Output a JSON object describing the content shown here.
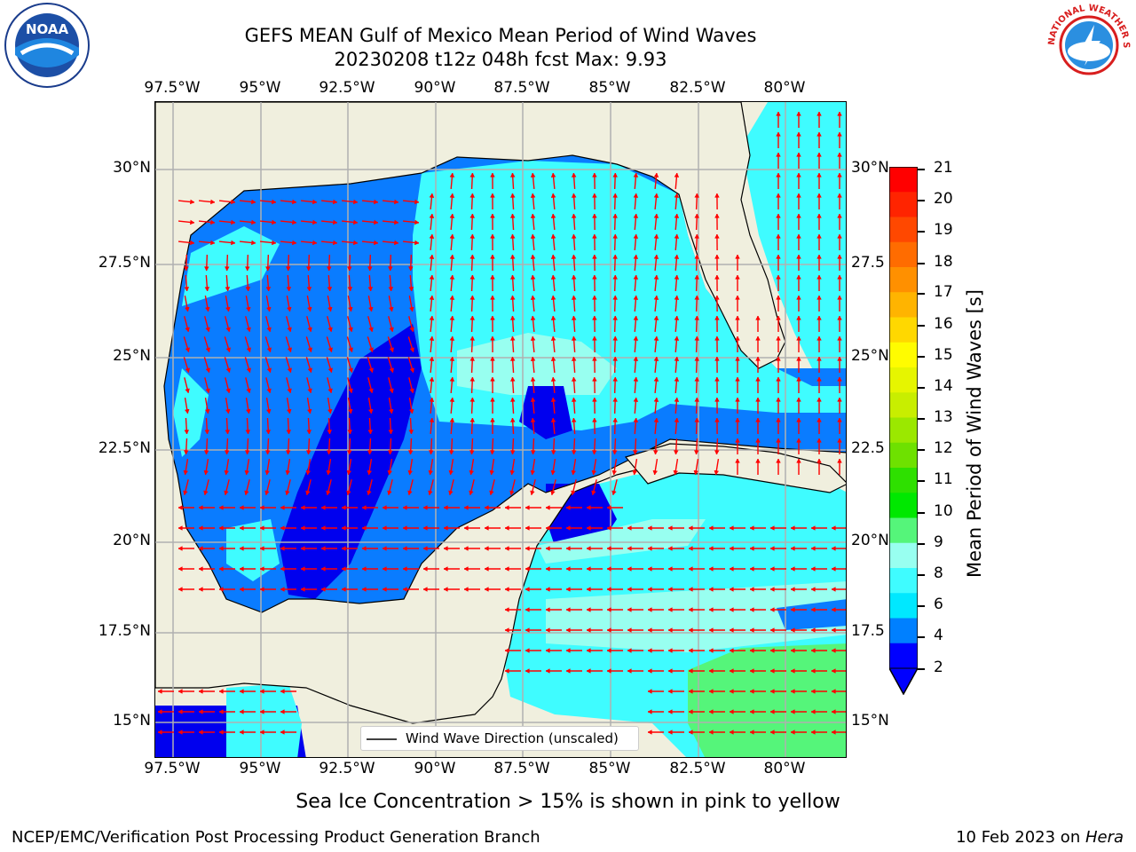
{
  "title": {
    "line1": "GEFS MEAN Gulf of Mexico Mean Period of Wind Waves",
    "line2": "20230208 t12z 048h fcst   Max: 9.93"
  },
  "axes": {
    "lon_labels": [
      "97.5°W",
      "95°W",
      "92.5°W",
      "90°W",
      "87.5°W",
      "85°W",
      "82.5°W",
      "80°W"
    ],
    "lat_labels_left": [
      "30°N",
      "27.5°N",
      "25°N",
      "22.5°N",
      "20°N",
      "17.5°N",
      "15°N"
    ],
    "lat_labels_right": [
      "30°N",
      "27.5",
      "25°N",
      "22.5",
      "20°N",
      "17.5",
      "15°N"
    ]
  },
  "colorbar": {
    "title": "Mean Period of Wind Waves [s]",
    "ticks": [
      "21",
      "20",
      "19",
      "18",
      "17",
      "16",
      "15",
      "14",
      "13",
      "12",
      "11",
      "10",
      "9",
      "8",
      "6",
      "4",
      "2"
    ],
    "colors": [
      "#ff0000",
      "#ff2400",
      "#ff4800",
      "#ff6c00",
      "#ff9000",
      "#ffb400",
      "#ffd800",
      "#fffc00",
      "#e6f500",
      "#c8ee00",
      "#9be800",
      "#6ee100",
      "#2ee000",
      "#00e800",
      "#55f57a",
      "#98fff0",
      "#3ffcff",
      "#00e8ff",
      "#0080ff",
      "#0000ff"
    ]
  },
  "legend": {
    "label": "Wind Wave Direction (unscaled)"
  },
  "note": "Sea Ice Concentration > 15% is shown in pink to yellow",
  "footer": {
    "left": "NCEP/EMC/Verification Post Processing Product Generation Branch",
    "right_date": "10 Feb 2023 on ",
    "right_host": "Hera"
  },
  "logos": {
    "noaa": "NOAA",
    "nws": "NATIONAL WEATHER SERVICE"
  },
  "map_colors": {
    "land": "#f0efde",
    "deep_blue": "#0000ee",
    "blue": "#0a7cff",
    "light_blue": "#3ffcff",
    "cyan": "#00e8ff",
    "pale_cyan": "#98fff0",
    "green": "#55f57a",
    "arrow": "#ff0000",
    "grid": "#b0b0b0"
  }
}
